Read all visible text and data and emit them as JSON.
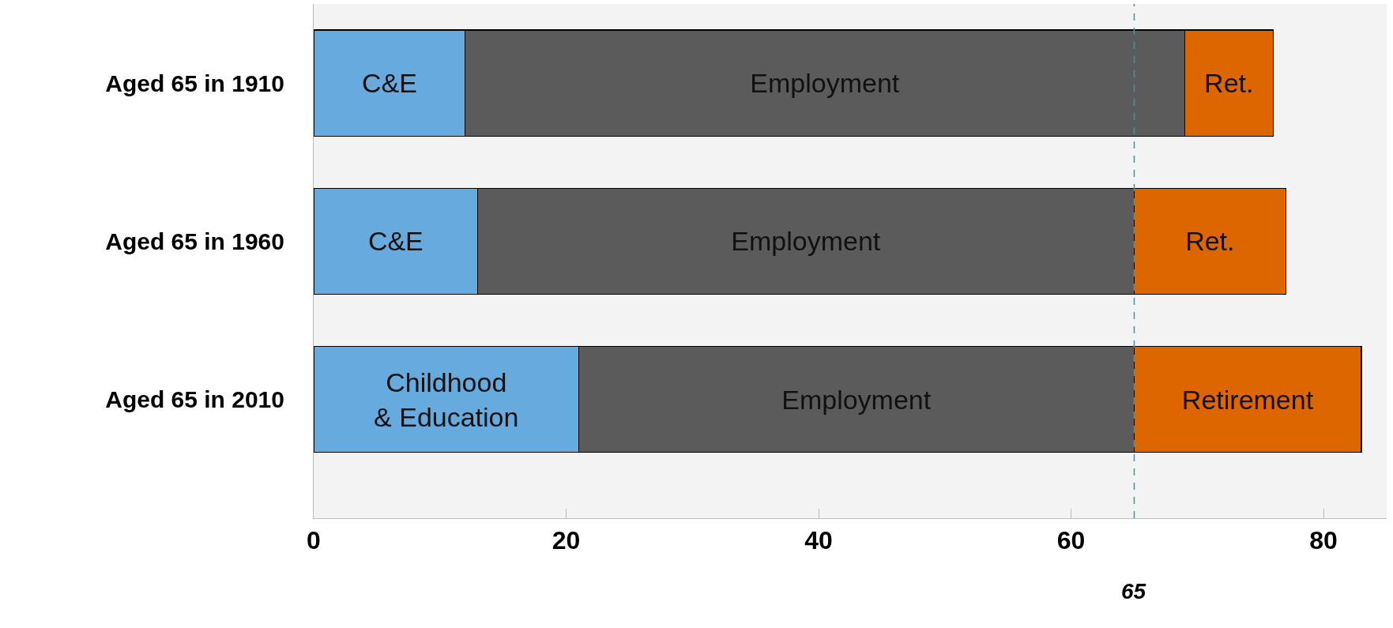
{
  "chart_data": {
    "type": "bar",
    "orientation": "horizontal",
    "stacked": true,
    "categories": [
      "Aged 65 in 1910",
      "Aged 65 in 1960",
      "Aged 65 in 2010"
    ],
    "series": [
      {
        "color": "#66aade",
        "values": [
          12,
          13,
          21
        ],
        "value_labels": [
          "C&E",
          "C&E",
          "Childhood\n& Education"
        ]
      },
      {
        "color": "#5b5b5b",
        "values": [
          57,
          52,
          44
        ],
        "value_labels": [
          "Employment",
          "Employment",
          "Employment"
        ]
      },
      {
        "color": "#dd6600",
        "values": [
          7,
          12,
          18
        ],
        "value_labels": [
          "Ret.",
          "Ret.",
          "Retirement"
        ]
      }
    ],
    "xlim": [
      0,
      85
    ],
    "xticks": [
      0,
      20,
      40,
      60,
      80
    ],
    "ref_lines": [
      {
        "axis": "x",
        "value": 65,
        "label": "65",
        "color": "#2aa0a8",
        "line_style": "dashed"
      }
    ],
    "grid": false,
    "legend": false
  }
}
